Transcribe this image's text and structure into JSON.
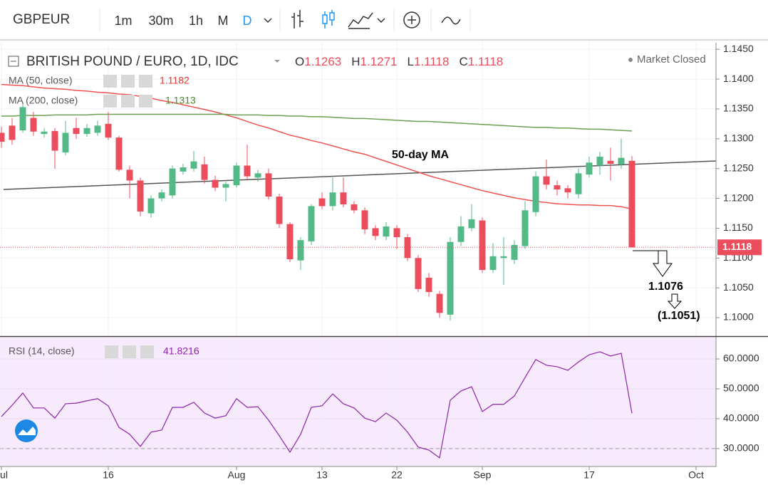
{
  "toolbar": {
    "symbol": "GBPEUR",
    "intervals": [
      "1m",
      "30m",
      "1h",
      "M",
      "D"
    ]
  },
  "chart_data": [
    {
      "type": "candlestick",
      "title": "BRITISH POUND / EURO, 1D, IDC",
      "status": "Market Closed",
      "ohlc_legend": [
        {
          "label": "O",
          "value": 1.1263
        },
        {
          "label": "H",
          "value": 1.1271
        },
        {
          "label": "L",
          "value": 1.1118
        },
        {
          "label": "C",
          "value": 1.1118
        }
      ],
      "categories": [
        "Jul",
        null,
        null,
        null,
        null,
        null,
        null,
        null,
        null,
        null,
        "16",
        null,
        null,
        null,
        null,
        null,
        null,
        null,
        null,
        null,
        null,
        null,
        "Aug",
        null,
        null,
        null,
        null,
        null,
        null,
        null,
        "13",
        null,
        null,
        null,
        null,
        null,
        null,
        "22",
        null,
        null,
        null,
        null,
        null,
        null,
        null,
        "Sep",
        null,
        null,
        null,
        null,
        null,
        null,
        null,
        null,
        null,
        "17",
        null,
        null,
        null,
        null,
        null,
        null,
        null,
        null,
        null,
        "Oct"
      ],
      "open": [
        1.131,
        1.1322,
        1.1314,
        1.1335,
        1.1308,
        1.1313,
        1.1277,
        1.1318,
        1.1308,
        1.131,
        1.1325,
        1.1302,
        1.1248,
        1.123,
        1.1175,
        1.12,
        1.1205,
        1.1245,
        1.125,
        1.1257,
        1.1231,
        1.1218,
        1.1222,
        1.1255,
        1.1235,
        1.1242,
        1.1203,
        1.1157,
        1.1096,
        1.1128,
        1.12,
        1.1187,
        1.121,
        1.119,
        1.118,
        1.115,
        1.1136,
        1.115,
        1.1135,
        1.11,
        1.1067,
        1.104,
        1.1005,
        1.1127,
        1.115,
        1.1163,
        1.108,
        1.11,
        1.1097,
        1.112,
        1.1177,
        1.1237,
        1.1222,
        1.1217,
        1.1207,
        1.124,
        1.1255,
        1.1263,
        1.1257,
        1.1263,
        null,
        null,
        null,
        null,
        null,
        null
      ],
      "high": [
        1.132,
        1.1335,
        1.136,
        1.1345,
        1.1318,
        1.1318,
        1.133,
        1.1335,
        1.1325,
        1.133,
        1.1345,
        1.1305,
        1.1255,
        1.1235,
        1.1205,
        1.1215,
        1.1255,
        1.1258,
        1.128,
        1.127,
        1.1238,
        1.1228,
        1.126,
        1.129,
        1.1248,
        1.125,
        1.1208,
        1.116,
        1.1135,
        1.119,
        1.121,
        1.1235,
        1.1235,
        1.1195,
        1.1185,
        1.1155,
        1.116,
        1.1155,
        1.114,
        1.1105,
        1.1075,
        1.1045,
        1.1135,
        1.117,
        1.119,
        1.1168,
        1.1125,
        1.1135,
        1.113,
        1.1195,
        1.1245,
        1.1265,
        1.123,
        1.1222,
        1.125,
        1.127,
        1.1278,
        1.1285,
        1.13,
        1.1271,
        null,
        null,
        null,
        null,
        null,
        null
      ],
      "low": [
        1.1285,
        1.129,
        1.131,
        1.1305,
        1.1302,
        1.125,
        1.1272,
        1.13,
        1.1303,
        1.1305,
        1.1298,
        1.1245,
        1.12,
        1.117,
        1.1168,
        1.1195,
        1.12,
        1.124,
        1.1245,
        1.1225,
        1.1212,
        1.1195,
        1.1218,
        1.123,
        1.1228,
        1.1198,
        1.115,
        1.1093,
        1.108,
        1.1122,
        1.1182,
        1.118,
        1.1185,
        1.1175,
        1.114,
        1.113,
        1.113,
        1.1115,
        1.1095,
        1.1043,
        1.1035,
        1.1,
        1.0995,
        1.112,
        1.1145,
        1.1075,
        1.1075,
        1.1055,
        1.109,
        1.1115,
        1.117,
        1.1215,
        1.1205,
        1.12,
        1.12,
        1.1235,
        1.124,
        1.123,
        1.125,
        1.1118,
        null,
        null,
        null,
        null,
        null,
        null
      ],
      "close": [
        1.1295,
        1.1298,
        1.1353,
        1.1312,
        1.1312,
        1.128,
        1.131,
        1.1308,
        1.1318,
        1.1322,
        1.1302,
        1.1248,
        1.123,
        1.1178,
        1.12,
        1.121,
        1.125,
        1.1252,
        1.1262,
        1.1231,
        1.1218,
        1.1224,
        1.1255,
        1.1237,
        1.1242,
        1.1203,
        1.1157,
        1.1098,
        1.113,
        1.1187,
        1.1187,
        1.121,
        1.119,
        1.118,
        1.1148,
        1.1137,
        1.1153,
        1.1135,
        1.11,
        1.1048,
        1.1043,
        1.1008,
        1.1127,
        1.1153,
        1.1165,
        1.108,
        1.1103,
        1.1103,
        1.1122,
        1.118,
        1.1237,
        1.1223,
        1.1215,
        1.121,
        1.1242,
        1.126,
        1.127,
        1.1258,
        1.1268,
        1.1118,
        null,
        null,
        null,
        null,
        null,
        null
      ],
      "up_color": "#53b987",
      "down_color": "#eb4d5c",
      "series": [
        {
          "name": "MA (50, close)",
          "color": "#ef5350",
          "last": 1.1182,
          "values": [
            1.1391,
            1.139,
            1.1389,
            1.1387,
            1.1385,
            1.1384,
            1.1383,
            1.1381,
            1.138,
            1.1378,
            1.1377,
            1.1375,
            1.1374,
            1.1371,
            1.1368,
            1.1364,
            1.1361,
            1.1357,
            1.1353,
            1.1349,
            1.1345,
            1.134,
            1.1335,
            1.1329,
            1.1323,
            1.1318,
            1.1312,
            1.1306,
            1.1302,
            1.1297,
            1.1293,
            1.1288,
            1.1283,
            1.1278,
            1.1274,
            1.1268,
            1.1262,
            1.1256,
            1.125,
            1.1244,
            1.1238,
            1.1233,
            1.1228,
            1.1223,
            1.1218,
            1.1213,
            1.1209,
            1.1205,
            1.1201,
            1.1198,
            1.1195,
            1.1193,
            1.1191,
            1.119,
            1.1189,
            1.1189,
            1.1188,
            1.1188,
            1.1186,
            1.1182,
            null,
            null,
            null,
            null,
            null,
            null
          ]
        },
        {
          "name": "MA (200, close)",
          "color": "#6a9e50",
          "last": 1.1313,
          "values": [
            1.1338,
            1.1338,
            1.1339,
            1.1339,
            1.1339,
            1.134,
            1.134,
            1.134,
            1.134,
            1.1341,
            1.1341,
            1.1341,
            1.1341,
            1.1341,
            1.1341,
            1.1341,
            1.1341,
            1.1341,
            1.1341,
            1.1341,
            1.1341,
            1.1341,
            1.134,
            1.134,
            1.134,
            1.1339,
            1.1339,
            1.1338,
            1.1338,
            1.1337,
            1.1337,
            1.1336,
            1.1335,
            1.1334,
            1.1334,
            1.1333,
            1.1332,
            1.1331,
            1.133,
            1.1329,
            1.1329,
            1.1328,
            1.1327,
            1.1326,
            1.1325,
            1.1324,
            1.1323,
            1.1322,
            1.1321,
            1.132,
            1.1319,
            1.1319,
            1.1318,
            1.1318,
            1.1317,
            1.1316,
            1.1316,
            1.1315,
            1.1314,
            1.1313,
            null,
            null,
            null,
            null,
            null,
            null
          ]
        }
      ],
      "annotations": [
        "50-day MA",
        "1.1076",
        "(1.1051)"
      ],
      "ylim": [
        1.0969,
        1.1461
      ],
      "yticks": [
        {
          "value": 1.1,
          "label": "1.1000"
        },
        {
          "value": 1.105,
          "label": "1.1050"
        },
        {
          "value": 1.11,
          "label": "1.1100"
        },
        {
          "value": 1.115,
          "label": "1.1150"
        },
        {
          "value": 1.12,
          "label": "1.1200"
        },
        {
          "value": 1.125,
          "label": "1.1250"
        },
        {
          "value": 1.13,
          "label": "1.1300"
        },
        {
          "value": 1.135,
          "label": "1.1350"
        },
        {
          "value": 1.14,
          "label": "1.1400"
        },
        {
          "value": 1.145,
          "label": "1.1450"
        }
      ],
      "grid": true
    },
    {
      "type": "line",
      "series": [
        {
          "name": "RSI (14, close)",
          "color": "#8e24aa",
          "last": 41.8216,
          "values": [
            40.7,
            44.5,
            48.6,
            43.6,
            43.6,
            40.2,
            45,
            45.2,
            46,
            46.7,
            44.3,
            37.1,
            34.8,
            30.7,
            35.5,
            36.2,
            43.8,
            43.8,
            45.5,
            41.9,
            40.2,
            41,
            46.7,
            43.8,
            44,
            39.5,
            34.3,
            28.8,
            34.8,
            43.8,
            44.3,
            48.3,
            45,
            43.6,
            40.2,
            39,
            41.9,
            39.5,
            35.5,
            30.5,
            29.5,
            26.9,
            46.2,
            49.3,
            50.7,
            42.4,
            44.8,
            44.8,
            47.6,
            53.8,
            59.8,
            57.9,
            57.4,
            56.2,
            59,
            61.4,
            62.4,
            61,
            61.9,
            41.8216,
            null,
            null,
            null,
            null,
            null,
            null
          ]
        }
      ],
      "ylim": [
        24,
        67.4
      ],
      "yticks": [
        {
          "value": 30,
          "label": "30.0000"
        },
        {
          "value": 40,
          "label": "40.0000"
        },
        {
          "value": 50,
          "label": "50.0000"
        },
        {
          "value": 60,
          "label": "60.0000"
        }
      ],
      "band_lower": 30,
      "grid": true
    }
  ]
}
